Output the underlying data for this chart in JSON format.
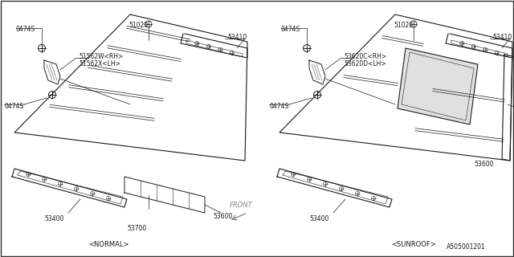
{
  "bg_color": "#ffffff",
  "line_color": "#1a1a1a",
  "text_color": "#1a1a1a",
  "footer": "A505001201",
  "fs": 5.5,
  "left_diagram": {
    "label_normal": "<NORMAL>",
    "label_53400": "53400",
    "label_53700": "53700",
    "label_53600": "53600",
    "label_53410": "53410",
    "label_51020": "51020",
    "label_0474S_top": "0474S",
    "label_0474S_bot": "0474S",
    "label_51562W": "51562W<RH>",
    "label_51562X": "51562X<LH>"
  },
  "right_diagram": {
    "label_sunroof": "<SUNROOF>",
    "label_53400": "53400",
    "label_53600": "53600",
    "label_53410": "53410",
    "label_51020": "51020",
    "label_0474S_top": "0474S",
    "label_0474S_bot": "0474S",
    "label_53620C": "53620C<RH>",
    "label_53620D": "53620D<LH>"
  },
  "front_label": "FRONT"
}
